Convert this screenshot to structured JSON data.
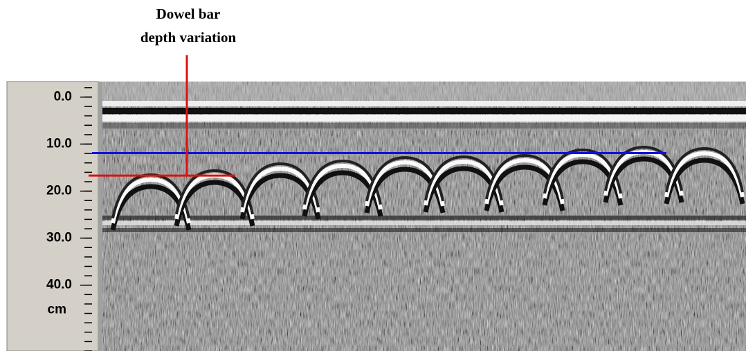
{
  "annotation": {
    "lines": [
      "Dowel bar",
      "depth variation"
    ]
  },
  "depth_axis": {
    "unit": "cm",
    "ylim": [
      -3.3,
      54
    ],
    "ticks": [
      {
        "value": 0,
        "label": "0.0"
      },
      {
        "value": 10,
        "label": "10.0"
      },
      {
        "value": 20,
        "label": "20.0"
      },
      {
        "value": 30,
        "label": "30.0"
      },
      {
        "value": 40,
        "label": "40.0"
      }
    ],
    "minor_step": 2
  },
  "reference_lines": [
    {
      "color": "#1010e0",
      "depth": 11.9
    },
    {
      "color": "#e01010",
      "depth": 16.7
    }
  ]
}
